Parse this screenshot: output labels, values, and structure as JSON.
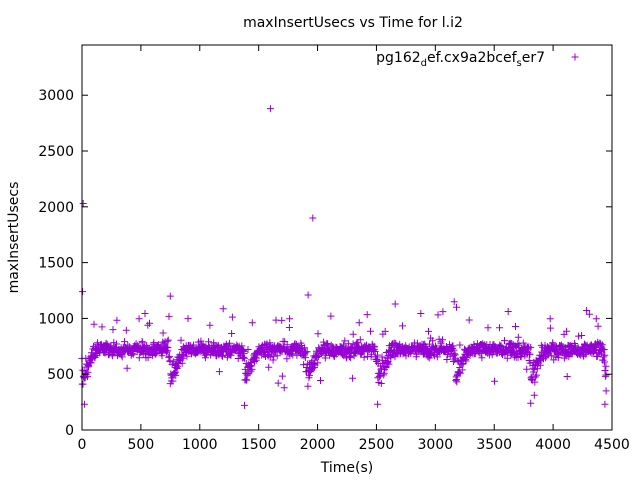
{
  "chart_data": {
    "type": "scatter",
    "title": "maxInsertUsecs vs Time for l.i2",
    "xlabel": "Time(s)",
    "ylabel": "maxInsertUsecs",
    "xlim": [
      0,
      4500
    ],
    "ylim": [
      0,
      3450
    ],
    "xticks": [
      0,
      500,
      1000,
      1500,
      2000,
      2500,
      3000,
      3500,
      4000,
      4500
    ],
    "yticks": [
      0,
      500,
      1000,
      1500,
      2000,
      2500,
      3000
    ],
    "legend_position": "top-right",
    "grid": false,
    "series": [
      {
        "name_parts": [
          "pg162",
          "d",
          "ef.cx9a2bcef",
          "s",
          "er7"
        ],
        "color": "#9400d3",
        "marker": "plus",
        "x_min": 0,
        "x_max": 4450,
        "baseline": 720,
        "dips_at": [
          0,
          750,
          1380,
          1900,
          2510,
          3170,
          3810,
          4440
        ],
        "outliers": [
          [
            5,
            1240
          ],
          [
            10,
            2030
          ],
          [
            1600,
            2880
          ],
          [
            1960,
            1900
          ],
          [
            1920,
            1210
          ],
          [
            750,
            1200
          ],
          [
            3160,
            1150
          ],
          [
            3180,
            1100
          ],
          [
            2510,
            230
          ],
          [
            3810,
            240
          ],
          [
            1380,
            220
          ],
          [
            20,
            230
          ],
          [
            4440,
            230
          ],
          [
            4450,
            350
          ]
        ]
      }
    ]
  }
}
